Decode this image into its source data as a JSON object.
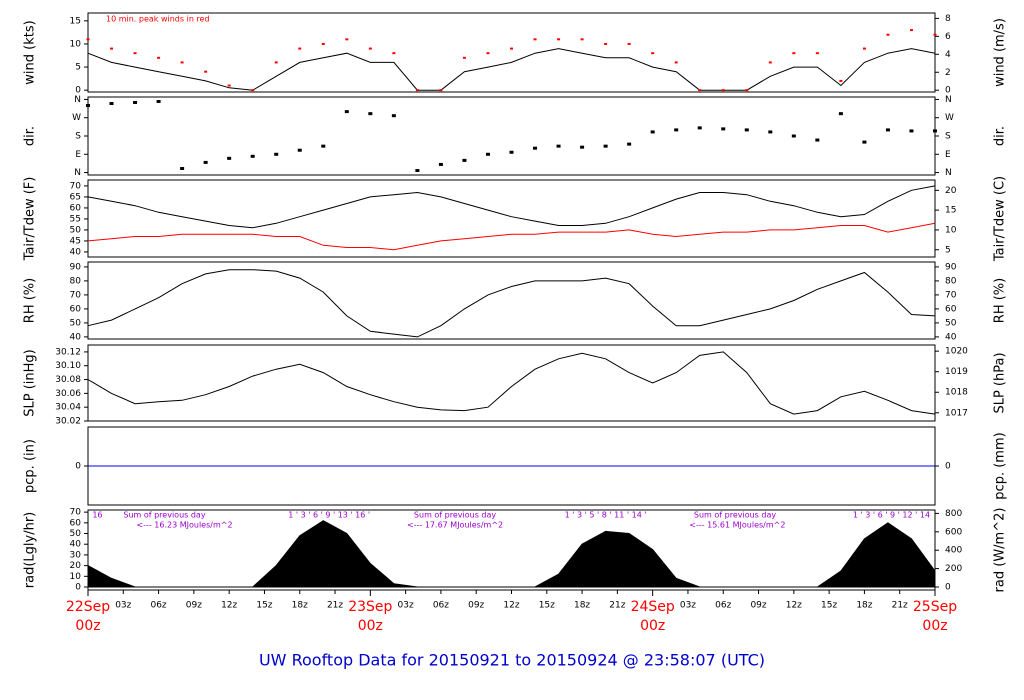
{
  "chart_data": [
    {
      "type": "line",
      "ylabel": "wind (kts)",
      "y2label": "wind (m/s)",
      "annotation": "10 min. peak winds in red",
      "xlim": [
        0,
        72
      ],
      "ylim": [
        -0.4,
        16.7
      ],
      "yticks": [
        0,
        5,
        10,
        15
      ],
      "y2lim": [
        -0.2,
        8.6
      ],
      "y2ticks": [
        0,
        2,
        4,
        6,
        8
      ],
      "x": [
        0,
        2,
        4,
        6,
        8,
        10,
        12,
        14,
        16,
        18,
        20,
        22,
        24,
        26,
        28,
        30,
        32,
        34,
        36,
        38,
        40,
        42,
        44,
        46,
        48,
        50,
        52,
        54,
        56,
        58,
        60,
        62,
        64,
        66,
        68,
        70,
        72
      ],
      "series": [
        {
          "color": "#000000",
          "values": [
            8,
            6,
            5,
            4,
            3,
            2,
            0.5,
            0,
            3,
            6,
            7,
            8,
            6,
            6,
            0,
            0,
            4,
            5,
            6,
            8,
            9,
            8,
            7,
            7,
            5,
            4,
            0,
            0,
            0,
            3,
            5,
            5,
            1,
            6,
            8,
            9,
            8
          ]
        },
        {
          "color": "#ff0000",
          "marker": true,
          "values": [
            11,
            9,
            8,
            7,
            6,
            4,
            1,
            0,
            6,
            9,
            10,
            11,
            9,
            8,
            0,
            0,
            7,
            8,
            9,
            11,
            11,
            11,
            10,
            10,
            8,
            6,
            0,
            0,
            0,
            6,
            8,
            8,
            2,
            9,
            12,
            13,
            12
          ]
        }
      ]
    },
    {
      "type": "scatter",
      "ylabel": "dir.",
      "y2label": "dir.",
      "color": "#000000",
      "xlim": [
        0,
        72
      ],
      "ylim": [
        -12,
        372
      ],
      "yticks": [
        {
          "value": 0,
          "label": "N"
        },
        {
          "value": 90,
          "label": "E"
        },
        {
          "value": 180,
          "label": "S"
        },
        {
          "value": 270,
          "label": "W"
        },
        {
          "value": 360,
          "label": "N"
        }
      ],
      "y2lim": [
        -12,
        372
      ],
      "y2ticks": [
        {
          "value": 0,
          "label": "N"
        },
        {
          "value": 90,
          "label": "E"
        },
        {
          "value": 180,
          "label": "S"
        },
        {
          "value": 270,
          "label": "W"
        },
        {
          "value": 360,
          "label": "N"
        }
      ],
      "x": [
        0,
        2,
        4,
        6,
        8,
        10,
        12,
        14,
        16,
        18,
        20,
        22,
        24,
        26,
        28,
        30,
        32,
        34,
        36,
        38,
        40,
        42,
        44,
        46,
        48,
        50,
        52,
        54,
        56,
        58,
        60,
        62,
        64,
        66,
        68,
        70,
        72
      ],
      "values": [
        330,
        340,
        345,
        350,
        20,
        50,
        70,
        80,
        90,
        110,
        130,
        300,
        290,
        280,
        10,
        40,
        60,
        90,
        100,
        120,
        130,
        125,
        130,
        140,
        200,
        210,
        220,
        215,
        210,
        200,
        180,
        160,
        290,
        150,
        210,
        205,
        205
      ]
    },
    {
      "type": "line",
      "ylabel": "Tair/Tdew (F)",
      "y2label": "Tair/Tdew (C)",
      "xlim": [
        0,
        72
      ],
      "ylim": [
        37.7,
        72.7
      ],
      "yticks": [
        40,
        45,
        50,
        55,
        60,
        65,
        70
      ],
      "y2lim": [
        3.17,
        22.61
      ],
      "y2ticks": [
        5,
        10,
        15,
        20
      ],
      "x": [
        0,
        2,
        4,
        6,
        8,
        10,
        12,
        14,
        16,
        18,
        20,
        22,
        24,
        26,
        28,
        30,
        32,
        34,
        36,
        38,
        40,
        42,
        44,
        46,
        48,
        50,
        52,
        54,
        56,
        58,
        60,
        62,
        64,
        66,
        68,
        70,
        72
      ],
      "series": [
        {
          "color": "#000000",
          "values": [
            65,
            63,
            61,
            58,
            56,
            54,
            52,
            51,
            53,
            56,
            59,
            62,
            65,
            66,
            67,
            65,
            62,
            59,
            56,
            54,
            52,
            52,
            53,
            56,
            60,
            64,
            67,
            67,
            66,
            63,
            61,
            58,
            56,
            57,
            63,
            68,
            70
          ]
        },
        {
          "color": "#ff0000",
          "values": [
            45,
            46,
            47,
            47,
            48,
            48,
            48,
            48,
            47,
            47,
            43,
            42,
            42,
            41,
            43,
            45,
            46,
            47,
            48,
            48,
            49,
            49,
            49,
            50,
            48,
            47,
            48,
            49,
            49,
            50,
            50,
            51,
            52,
            52,
            49,
            51,
            53
          ]
        }
      ]
    },
    {
      "type": "line",
      "ylabel": "RH (%)",
      "y2label": "RH (%)",
      "xlim": [
        0,
        72
      ],
      "ylim": [
        38.5,
        93.5
      ],
      "yticks": [
        40,
        50,
        60,
        70,
        80,
        90
      ],
      "y2lim": [
        38.5,
        93.5
      ],
      "y2ticks": [
        40,
        50,
        60,
        70,
        80,
        90
      ],
      "x": [
        0,
        2,
        4,
        6,
        8,
        10,
        12,
        14,
        16,
        18,
        20,
        22,
        24,
        26,
        28,
        30,
        32,
        34,
        36,
        38,
        40,
        42,
        44,
        46,
        48,
        50,
        52,
        54,
        56,
        58,
        60,
        62,
        64,
        66,
        68,
        70,
        72
      ],
      "series": [
        {
          "color": "#000000",
          "values": [
            48,
            52,
            60,
            68,
            78,
            85,
            88,
            88,
            87,
            82,
            72,
            55,
            44,
            42,
            40,
            48,
            60,
            70,
            76,
            80,
            80,
            80,
            82,
            78,
            62,
            48,
            48,
            52,
            56,
            60,
            66,
            74,
            80,
            86,
            72,
            56,
            55
          ]
        }
      ]
    },
    {
      "type": "line",
      "ylabel": "SLP (inHg)",
      "y2label": "SLP (hPa)",
      "xlim": [
        0,
        72
      ],
      "ylim": [
        30.02,
        30.13
      ],
      "yticks": [
        {
          "value": 30.02,
          "label": "30.02"
        },
        {
          "value": 30.04,
          "label": "30.04"
        },
        {
          "value": 30.06,
          "label": "30.06"
        },
        {
          "value": 30.08,
          "label": "30.08"
        },
        {
          "value": 30.1,
          "label": "30.10"
        },
        {
          "value": 30.12,
          "label": "30.12"
        }
      ],
      "y2lim": [
        1016.6,
        1020.3
      ],
      "y2ticks": [
        1017,
        1018,
        1019,
        1020
      ],
      "x": [
        0,
        2,
        4,
        6,
        8,
        10,
        12,
        14,
        16,
        18,
        20,
        22,
        24,
        26,
        28,
        30,
        32,
        34,
        36,
        38,
        40,
        42,
        44,
        46,
        48,
        50,
        52,
        54,
        56,
        58,
        60,
        62,
        64,
        66,
        68,
        70,
        72
      ],
      "series": [
        {
          "color": "#000000",
          "values": [
            30.08,
            30.06,
            30.045,
            30.048,
            30.05,
            30.058,
            30.07,
            30.085,
            30.095,
            30.102,
            30.09,
            30.07,
            30.058,
            30.048,
            30.04,
            30.036,
            30.035,
            30.04,
            30.07,
            30.095,
            30.11,
            30.118,
            30.11,
            30.09,
            30.075,
            30.09,
            30.115,
            30.12,
            30.09,
            30.045,
            30.03,
            30.035,
            30.055,
            30.063,
            30.05,
            30.035,
            30.03
          ]
        }
      ]
    },
    {
      "type": "line",
      "ylabel": "pcp. (in)",
      "y2label": "pcp. (mm)",
      "xlim": [
        0,
        72
      ],
      "ylim": [
        -1,
        1
      ],
      "yticks": [
        0
      ],
      "y2lim": [
        -25.4,
        25.4
      ],
      "y2ticks": [
        0
      ],
      "x": [
        0,
        72
      ],
      "series": [
        {
          "color": "#0000ff",
          "values": [
            0,
            0
          ]
        }
      ]
    },
    {
      "type": "area",
      "ylabel": "rad(Lgly/hr)",
      "y2label": "rad (W/m^2)",
      "color": "#000000",
      "xlim": [
        0,
        72
      ],
      "ylim": [
        -2.8,
        72
      ],
      "yticks": [
        0,
        10,
        20,
        30,
        40,
        50,
        60,
        70
      ],
      "y2lim": [
        -32.6,
        837
      ],
      "y2ticks": [
        0,
        200,
        400,
        600,
        800
      ],
      "x": [
        0,
        2,
        4,
        6,
        8,
        10,
        12,
        14,
        16,
        18,
        20,
        22,
        24,
        26,
        28,
        30,
        32,
        34,
        36,
        38,
        40,
        42,
        44,
        46,
        48,
        50,
        52,
        54,
        56,
        58,
        60,
        62,
        64,
        66,
        68,
        70,
        72
      ],
      "values": [
        20,
        8,
        0,
        0,
        0,
        0,
        0,
        0,
        20,
        48,
        62,
        50,
        22,
        3,
        0,
        0,
        0,
        0,
        0,
        0,
        12,
        40,
        52,
        50,
        35,
        8,
        0,
        0,
        0,
        0,
        0,
        0,
        15,
        45,
        60,
        45,
        15
      ],
      "annotations_top": [
        {
          "x": 0.8,
          "text": "16"
        },
        {
          "x": 6.5,
          "text": "Sum of previous day"
        },
        {
          "x": 20.5,
          "text": "1 ' 3 ' 6 ' 9 ' 13 ' 16 '"
        },
        {
          "x": 31.2,
          "text": "Sum of previous day"
        },
        {
          "x": 44,
          "text": "1 ' 3 ' 5 ' 8 ' 11 ' 14 '"
        },
        {
          "x": 55,
          "text": "Sum of previous day"
        },
        {
          "x": 68.3,
          "text": "1 ' 3 ' 6 ' 9 ' 12 ' 14"
        }
      ],
      "annotations_bottom": [
        {
          "x": 8.2,
          "text": "<--- 16.23 MJoules/m^2"
        },
        {
          "x": 31.2,
          "text": "<--- 17.67 MJoules/m^2"
        },
        {
          "x": 55.2,
          "text": "<--- 15.61 MJoules/m^2"
        }
      ],
      "xticks": [
        {
          "value": 3,
          "label": "03z"
        },
        {
          "value": 6,
          "label": "06z"
        },
        {
          "value": 9,
          "label": "09z"
        },
        {
          "value": 12,
          "label": "12z"
        },
        {
          "value": 15,
          "label": "15z"
        },
        {
          "value": 18,
          "label": "18z"
        },
        {
          "value": 21,
          "label": "21z"
        },
        {
          "value": 27,
          "label": "03z"
        },
        {
          "value": 30,
          "label": "06z"
        },
        {
          "value": 33,
          "label": "09z"
        },
        {
          "value": 36,
          "label": "12z"
        },
        {
          "value": 39,
          "label": "15z"
        },
        {
          "value": 42,
          "label": "18z"
        },
        {
          "value": 45,
          "label": "21z"
        },
        {
          "value": 51,
          "label": "03z"
        },
        {
          "value": 54,
          "label": "06z"
        },
        {
          "value": 57,
          "label": "09z"
        },
        {
          "value": 60,
          "label": "12z"
        },
        {
          "value": 63,
          "label": "15z"
        },
        {
          "value": 66,
          "label": "18z"
        },
        {
          "value": 69,
          "label": "21z"
        }
      ],
      "date_ticks": [
        {
          "value": 0,
          "label": "22Sep",
          "sublabel": "00z"
        },
        {
          "value": 24,
          "label": "23Sep",
          "sublabel": "00z"
        },
        {
          "value": 48,
          "label": "24Sep",
          "sublabel": "00z"
        },
        {
          "value": 72,
          "label": "25Sep",
          "sublabel": "00z"
        }
      ]
    }
  ],
  "footer": "UW Rooftop Data for 20150921  to  20150924 @ 23:58:07  (UTC)"
}
